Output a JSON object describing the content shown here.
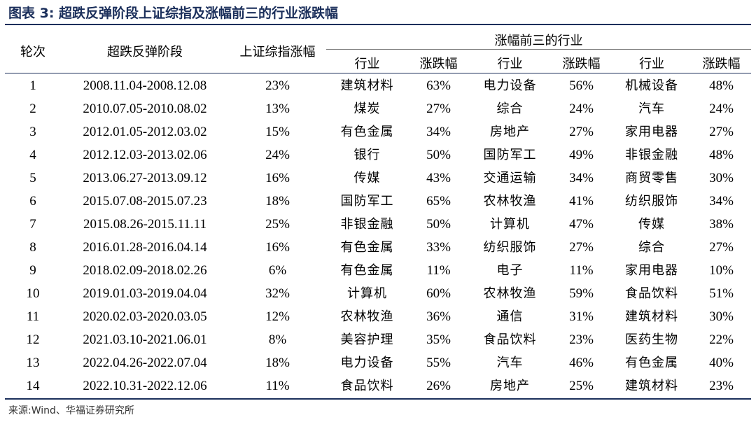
{
  "title": "图表 3:  超跌反弹阶段上证综指及涨幅前三的行业涨跌幅",
  "headers": {
    "round": "轮次",
    "period": "超跌反弹阶段",
    "index_change": "上证综指涨幅",
    "top3": "涨幅前三的行业",
    "sub": [
      "行业",
      "涨跌幅",
      "行业",
      "涨跌幅",
      "行业",
      "涨跌幅"
    ]
  },
  "rows": [
    [
      "1",
      "2008.11.04-2008.12.08",
      "23%",
      "建筑材料",
      "63%",
      "电力设备",
      "56%",
      "机械设备",
      "48%"
    ],
    [
      "2",
      "2010.07.05-2010.08.02",
      "13%",
      "煤炭",
      "27%",
      "综合",
      "24%",
      "汽车",
      "24%"
    ],
    [
      "3",
      "2012.01.05-2012.03.02",
      "15%",
      "有色金属",
      "34%",
      "房地产",
      "27%",
      "家用电器",
      "27%"
    ],
    [
      "4",
      "2012.12.03-2013.02.06",
      "24%",
      "银行",
      "50%",
      "国防军工",
      "49%",
      "非银金融",
      "48%"
    ],
    [
      "5",
      "2013.06.27-2013.09.12",
      "16%",
      "传媒",
      "43%",
      "交通运输",
      "34%",
      "商贸零售",
      "30%"
    ],
    [
      "6",
      "2015.07.08-2015.07.23",
      "18%",
      "国防军工",
      "65%",
      "农林牧渔",
      "41%",
      "纺织服饰",
      "34%"
    ],
    [
      "7",
      "2015.08.26-2015.11.11",
      "25%",
      "非银金融",
      "50%",
      "计算机",
      "47%",
      "传媒",
      "38%"
    ],
    [
      "8",
      "2016.01.28-2016.04.14",
      "16%",
      "有色金属",
      "33%",
      "纺织服饰",
      "27%",
      "综合",
      "27%"
    ],
    [
      "9",
      "2018.02.09-2018.02.26",
      "6%",
      "有色金属",
      "11%",
      "电子",
      "11%",
      "家用电器",
      "10%"
    ],
    [
      "10",
      "2019.01.03-2019.04.04",
      "32%",
      "计算机",
      "60%",
      "农林牧渔",
      "59%",
      "食品饮料",
      "51%"
    ],
    [
      "11",
      "2020.02.03-2020.03.05",
      "12%",
      "农林牧渔",
      "36%",
      "通信",
      "31%",
      "建筑材料",
      "30%"
    ],
    [
      "12",
      "2021.03.10-2021.06.01",
      "8%",
      "美容护理",
      "35%",
      "食品饮料",
      "23%",
      "医药生物",
      "22%"
    ],
    [
      "13",
      "2022.04.26-2022.07.04",
      "18%",
      "电力设备",
      "55%",
      "汽车",
      "46%",
      "有色金属",
      "40%"
    ],
    [
      "14",
      "2022.10.31-2022.12.06",
      "11%",
      "食品饮料",
      "26%",
      "房地产",
      "25%",
      "建筑材料",
      "23%"
    ]
  ],
  "source": "来源:Wind、华福证券研究所"
}
